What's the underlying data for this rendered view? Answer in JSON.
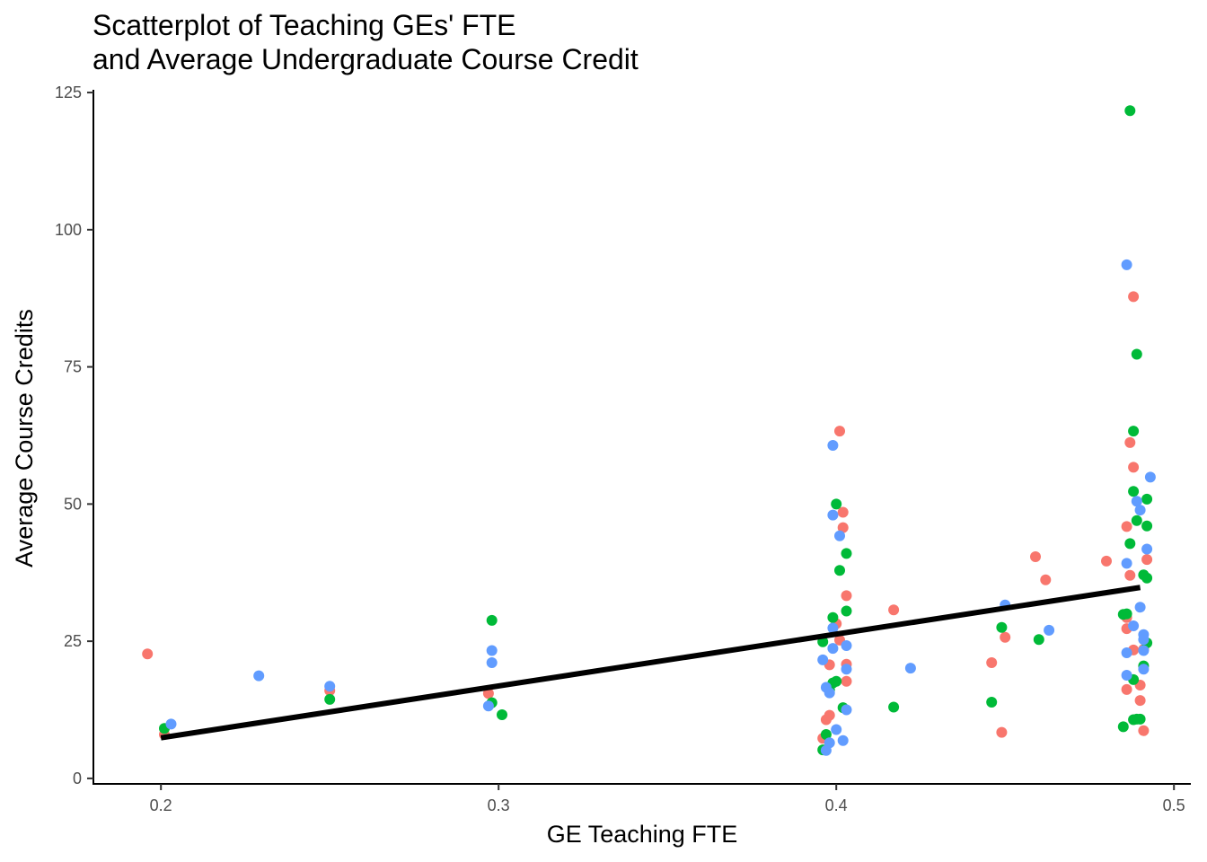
{
  "chart_data": {
    "type": "scatter",
    "title": [
      "Scatterplot of Teaching GEs' FTE",
      "and Average Undergraduate Course Credit"
    ],
    "xlabel": "GE Teaching FTE",
    "ylabel": "Average Course Credits",
    "xlim": [
      0.18,
      0.505
    ],
    "ylim": [
      -1,
      125.5
    ],
    "xticks": [
      0.2,
      0.3,
      0.4,
      0.5
    ],
    "xtick_labels": [
      "0.2",
      "0.3",
      "0.4",
      "0.5"
    ],
    "yticks": [
      0,
      25,
      50,
      75,
      100,
      125
    ],
    "ytick_labels": [
      "0",
      "25",
      "50",
      "75",
      "100",
      "125"
    ],
    "grid": false,
    "legend": "none",
    "series": [
      {
        "color": "#F8766D",
        "points": [
          [
            0.196,
            22.7
          ],
          [
            0.201,
            8.0
          ],
          [
            0.25,
            16.0
          ],
          [
            0.297,
            15.5
          ],
          [
            0.396,
            7.3
          ],
          [
            0.397,
            10.7
          ],
          [
            0.398,
            11.5
          ],
          [
            0.398,
            20.7
          ],
          [
            0.4,
            28.2
          ],
          [
            0.401,
            25.2
          ],
          [
            0.401,
            63.3
          ],
          [
            0.402,
            48.5
          ],
          [
            0.402,
            45.7
          ],
          [
            0.403,
            33.3
          ],
          [
            0.403,
            20.8
          ],
          [
            0.403,
            17.7
          ],
          [
            0.417,
            30.7
          ],
          [
            0.446,
            21.1
          ],
          [
            0.449,
            8.4
          ],
          [
            0.45,
            25.7
          ],
          [
            0.459,
            40.4
          ],
          [
            0.462,
            36.2
          ],
          [
            0.48,
            39.6
          ],
          [
            0.486,
            45.9
          ],
          [
            0.486,
            29.3
          ],
          [
            0.486,
            27.3
          ],
          [
            0.486,
            16.2
          ],
          [
            0.487,
            37.0
          ],
          [
            0.487,
            61.2
          ],
          [
            0.488,
            56.7
          ],
          [
            0.488,
            87.8
          ],
          [
            0.488,
            23.4
          ],
          [
            0.49,
            17.0
          ],
          [
            0.49,
            14.2
          ],
          [
            0.491,
            8.7
          ],
          [
            0.492,
            39.9
          ],
          [
            0.491,
            23.5
          ]
        ]
      },
      {
        "color": "#00BA38",
        "points": [
          [
            0.201,
            9.1
          ],
          [
            0.25,
            14.4
          ],
          [
            0.298,
            28.8
          ],
          [
            0.298,
            13.8
          ],
          [
            0.301,
            11.6
          ],
          [
            0.396,
            5.2
          ],
          [
            0.396,
            24.9
          ],
          [
            0.397,
            8.0
          ],
          [
            0.398,
            16.1
          ],
          [
            0.399,
            29.3
          ],
          [
            0.399,
            17.4
          ],
          [
            0.4,
            50.0
          ],
          [
            0.4,
            17.7
          ],
          [
            0.401,
            37.9
          ],
          [
            0.402,
            12.9
          ],
          [
            0.403,
            30.5
          ],
          [
            0.403,
            41.0
          ],
          [
            0.417,
            13.0
          ],
          [
            0.446,
            13.9
          ],
          [
            0.449,
            27.5
          ],
          [
            0.46,
            25.3
          ],
          [
            0.485,
            29.9
          ],
          [
            0.485,
            9.4
          ],
          [
            0.486,
            30.0
          ],
          [
            0.487,
            121.7
          ],
          [
            0.487,
            42.8
          ],
          [
            0.488,
            52.3
          ],
          [
            0.488,
            63.3
          ],
          [
            0.488,
            18.0
          ],
          [
            0.488,
            10.7
          ],
          [
            0.489,
            47.0
          ],
          [
            0.489,
            77.3
          ],
          [
            0.489,
            10.8
          ],
          [
            0.49,
            10.8
          ],
          [
            0.491,
            37.1
          ],
          [
            0.491,
            20.5
          ],
          [
            0.492,
            36.5
          ],
          [
            0.492,
            46.0
          ],
          [
            0.492,
            50.9
          ],
          [
            0.492,
            24.7
          ]
        ]
      },
      {
        "color": "#619CFF",
        "points": [
          [
            0.203,
            9.9
          ],
          [
            0.229,
            18.7
          ],
          [
            0.25,
            16.8
          ],
          [
            0.297,
            13.2
          ],
          [
            0.298,
            23.3
          ],
          [
            0.298,
            21.1
          ],
          [
            0.396,
            21.6
          ],
          [
            0.397,
            5.1
          ],
          [
            0.397,
            16.6
          ],
          [
            0.398,
            15.6
          ],
          [
            0.398,
            6.5
          ],
          [
            0.399,
            48.0
          ],
          [
            0.399,
            60.7
          ],
          [
            0.399,
            27.4
          ],
          [
            0.399,
            23.7
          ],
          [
            0.4,
            8.9
          ],
          [
            0.401,
            44.2
          ],
          [
            0.402,
            6.9
          ],
          [
            0.403,
            24.2
          ],
          [
            0.403,
            12.5
          ],
          [
            0.403,
            19.9
          ],
          [
            0.422,
            20.1
          ],
          [
            0.45,
            31.6
          ],
          [
            0.463,
            27.0
          ],
          [
            0.486,
            93.6
          ],
          [
            0.486,
            22.9
          ],
          [
            0.486,
            18.8
          ],
          [
            0.486,
            39.2
          ],
          [
            0.488,
            27.8
          ],
          [
            0.489,
            50.5
          ],
          [
            0.49,
            48.9
          ],
          [
            0.49,
            31.2
          ],
          [
            0.491,
            23.3
          ],
          [
            0.491,
            19.9
          ],
          [
            0.491,
            26.2
          ],
          [
            0.492,
            41.8
          ],
          [
            0.493,
            54.9
          ],
          [
            0.491,
            25.3
          ]
        ]
      }
    ],
    "trend_line": {
      "color": "#000000",
      "x": [
        0.2,
        0.49
      ],
      "y": [
        7.4,
        34.8
      ]
    }
  }
}
